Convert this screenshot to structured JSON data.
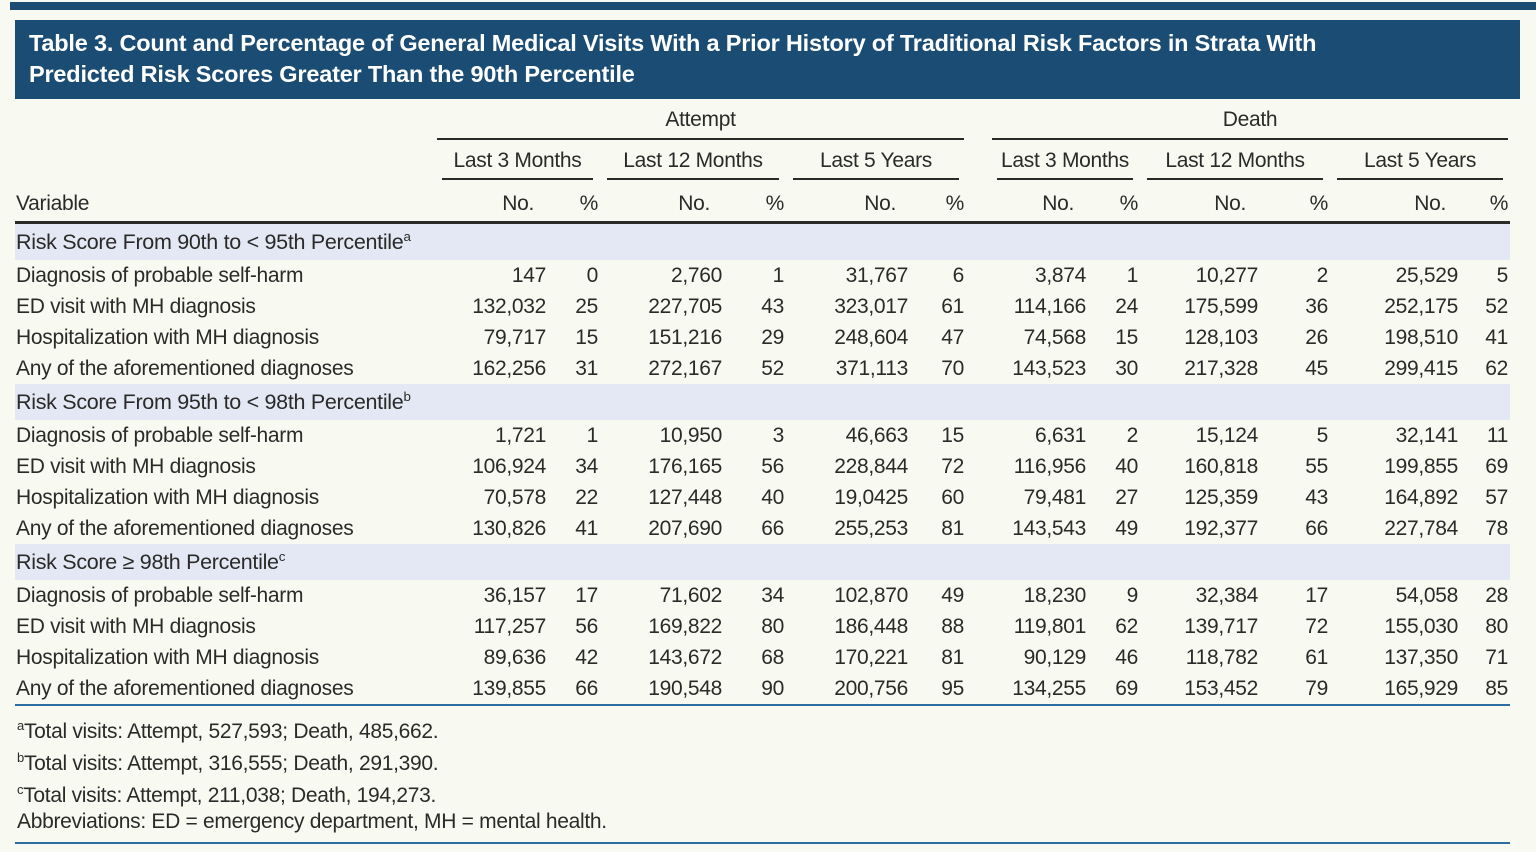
{
  "title": {
    "line1": "Table 3. Count and Percentage of General Medical Visits With a Prior History of Traditional Risk Factors in Strata With",
    "line2": "Predicted Risk Scores Greater Than the 90th Percentile"
  },
  "table": {
    "variable_header": "Variable",
    "groups": [
      {
        "label": "Attempt",
        "periods": [
          "Last 3 Months",
          "Last 12 Months",
          "Last 5 Years"
        ]
      },
      {
        "label": "Death",
        "periods": [
          "Last 3 Months",
          "Last 12 Months",
          "Last 5 Years"
        ]
      }
    ],
    "subheaders": {
      "count": "No.",
      "percent": "%"
    },
    "sections": [
      {
        "label": "Risk Score From 90th to < 95th Percentile",
        "footnote_mark": "a",
        "rows": [
          {
            "label": "Diagnosis of probable self-harm",
            "values": [
              "147",
              "0",
              "2,760",
              "1",
              "31,767",
              "6",
              "3,874",
              "1",
              "10,277",
              "2",
              "25,529",
              "5"
            ]
          },
          {
            "label": "ED visit with MH diagnosis",
            "values": [
              "132,032",
              "25",
              "227,705",
              "43",
              "323,017",
              "61",
              "114,166",
              "24",
              "175,599",
              "36",
              "252,175",
              "52"
            ]
          },
          {
            "label": "Hospitalization with MH diagnosis",
            "values": [
              "79,717",
              "15",
              "151,216",
              "29",
              "248,604",
              "47",
              "74,568",
              "15",
              "128,103",
              "26",
              "198,510",
              "41"
            ]
          },
          {
            "label": "Any of the aforementioned diagnoses",
            "values": [
              "162,256",
              "31",
              "272,167",
              "52",
              "371,113",
              "70",
              "143,523",
              "30",
              "217,328",
              "45",
              "299,415",
              "62"
            ]
          }
        ]
      },
      {
        "label": "Risk Score From 95th to < 98th Percentile",
        "footnote_mark": "b",
        "rows": [
          {
            "label": "Diagnosis of probable self-harm",
            "values": [
              "1,721",
              "1",
              "10,950",
              "3",
              "46,663",
              "15",
              "6,631",
              "2",
              "15,124",
              "5",
              "32,141",
              "11"
            ]
          },
          {
            "label": "ED visit with MH diagnosis",
            "values": [
              "106,924",
              "34",
              "176,165",
              "56",
              "228,844",
              "72",
              "116,956",
              "40",
              "160,818",
              "55",
              "199,855",
              "69"
            ]
          },
          {
            "label": "Hospitalization with MH diagnosis",
            "values": [
              "70,578",
              "22",
              "127,448",
              "40",
              "19,0425",
              "60",
              "79,481",
              "27",
              "125,359",
              "43",
              "164,892",
              "57"
            ]
          },
          {
            "label": "Any of the aforementioned diagnoses",
            "values": [
              "130,826",
              "41",
              "207,690",
              "66",
              "255,253",
              "81",
              "143,543",
              "49",
              "192,377",
              "66",
              "227,784",
              "78"
            ]
          }
        ]
      },
      {
        "label": "Risk Score ≥ 98th Percentile",
        "footnote_mark": "c",
        "rows": [
          {
            "label": "Diagnosis of probable self-harm",
            "values": [
              "36,157",
              "17",
              "71,602",
              "34",
              "102,870",
              "49",
              "18,230",
              "9",
              "32,384",
              "17",
              "54,058",
              "28"
            ]
          },
          {
            "label": "ED visit with MH diagnosis",
            "values": [
              "117,257",
              "56",
              "169,822",
              "80",
              "186,448",
              "88",
              "119,801",
              "62",
              "139,717",
              "72",
              "155,030",
              "80"
            ]
          },
          {
            "label": "Hospitalization with MH diagnosis",
            "values": [
              "89,636",
              "42",
              "143,672",
              "68",
              "170,221",
              "81",
              "90,129",
              "46",
              "118,782",
              "61",
              "137,350",
              "71"
            ]
          },
          {
            "label": "Any of the aforementioned diagnoses",
            "values": [
              "139,855",
              "66",
              "190,548",
              "90",
              "200,756",
              "95",
              "134,255",
              "69",
              "153,452",
              "79",
              "165,929",
              "85"
            ]
          }
        ]
      }
    ]
  },
  "footnotes": [
    {
      "mark": "a",
      "text": "Total visits: Attempt, 527,593; Death, 485,662."
    },
    {
      "mark": "b",
      "text": "Total visits: Attempt, 316,555; Death, 291,390."
    },
    {
      "mark": "c",
      "text": "Total visits: Attempt, 211,038; Death, 194,273."
    },
    {
      "mark": "",
      "text": "Abbreviations: ED = emergency department, MH = mental health."
    }
  ],
  "colors": {
    "title_bar": "#1b4d74",
    "section_band": "#e3e8f4",
    "page_background": "#f8faf2",
    "blue_rule": "#2c6ca0",
    "dark_rule": "#2b2a29",
    "text": "#2b2a29",
    "title_text": "#ffffff"
  }
}
